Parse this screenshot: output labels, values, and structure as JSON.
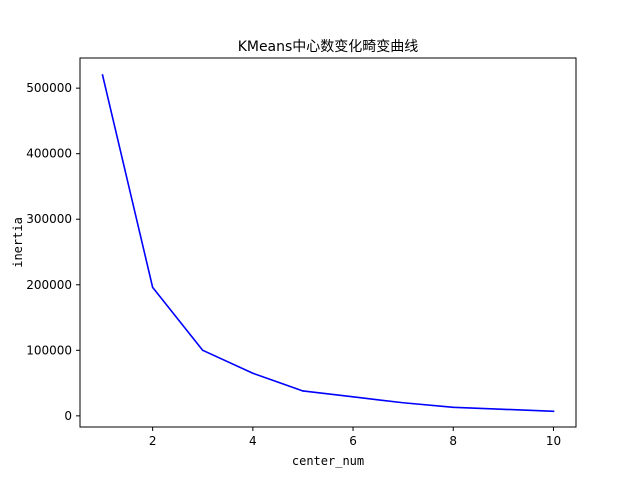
{
  "chart_data": {
    "type": "line",
    "title": "KMeans中心数变化畸变曲线",
    "xlabel": "center_num",
    "ylabel": "inertia",
    "xlim": [
      0.55,
      10.45
    ],
    "ylim": [
      -17000,
      546000
    ],
    "x_ticks": [
      2,
      4,
      6,
      8,
      10
    ],
    "y_ticks": [
      0,
      100000,
      200000,
      300000,
      400000,
      500000
    ],
    "grid": false,
    "series": [
      {
        "color": "#0000ff",
        "x": [
          1,
          2,
          3,
          4,
          5,
          6,
          7,
          8,
          9,
          10
        ],
        "y": [
          520000,
          196000,
          100000,
          65000,
          38000,
          29000,
          20000,
          13000,
          10000,
          7000
        ]
      }
    ]
  }
}
